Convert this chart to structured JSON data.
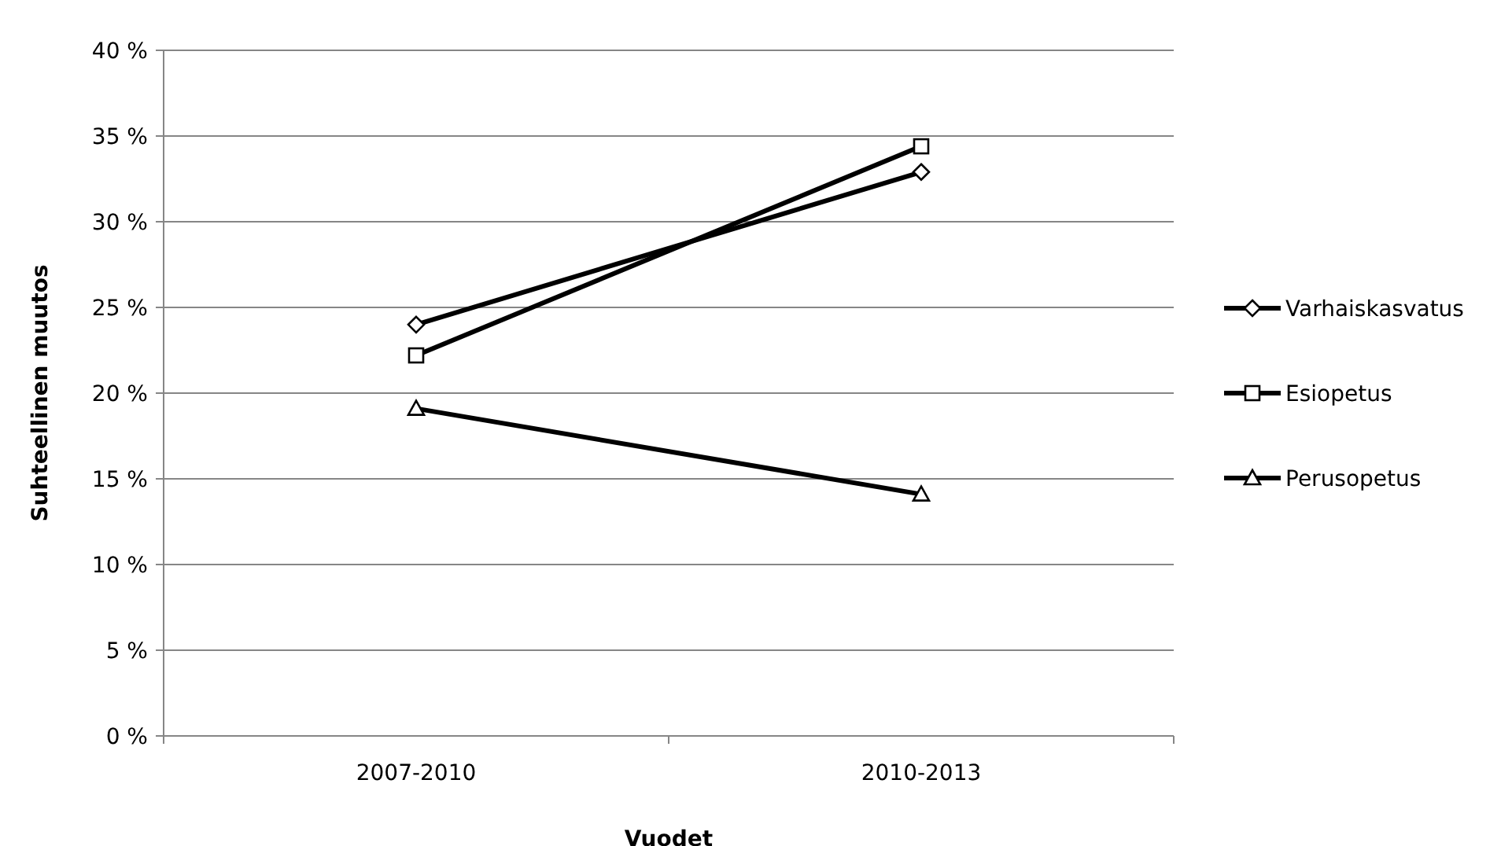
{
  "chart_data": {
    "type": "line",
    "xlabel": "Vuodet",
    "ylabel": "Suhteellinen muutos",
    "categories": [
      "2007-2010",
      "2010-2013"
    ],
    "series": [
      {
        "name": "Varhaiskasvatus",
        "color": "#000000",
        "marker": "diamond",
        "values": [
          24.0,
          32.9
        ]
      },
      {
        "name": "Esiopetus",
        "color": "#000000",
        "marker": "square",
        "values": [
          22.2,
          34.4
        ]
      },
      {
        "name": "Perusopetus",
        "color": "#000000",
        "marker": "triangle",
        "values": [
          19.1,
          14.1
        ]
      }
    ],
    "ylim": [
      0,
      40
    ],
    "yticks": [
      {
        "value": 0,
        "label": "0 %"
      },
      {
        "value": 5,
        "label": "5 %"
      },
      {
        "value": 10,
        "label": "10 %"
      },
      {
        "value": 15,
        "label": "15 %"
      },
      {
        "value": 20,
        "label": "20 %"
      },
      {
        "value": 25,
        "label": "25 %"
      },
      {
        "value": 30,
        "label": "30 %"
      },
      {
        "value": 35,
        "label": "35 %"
      },
      {
        "value": 40,
        "label": "40 %"
      }
    ],
    "grid": "y",
    "legend": "right"
  }
}
